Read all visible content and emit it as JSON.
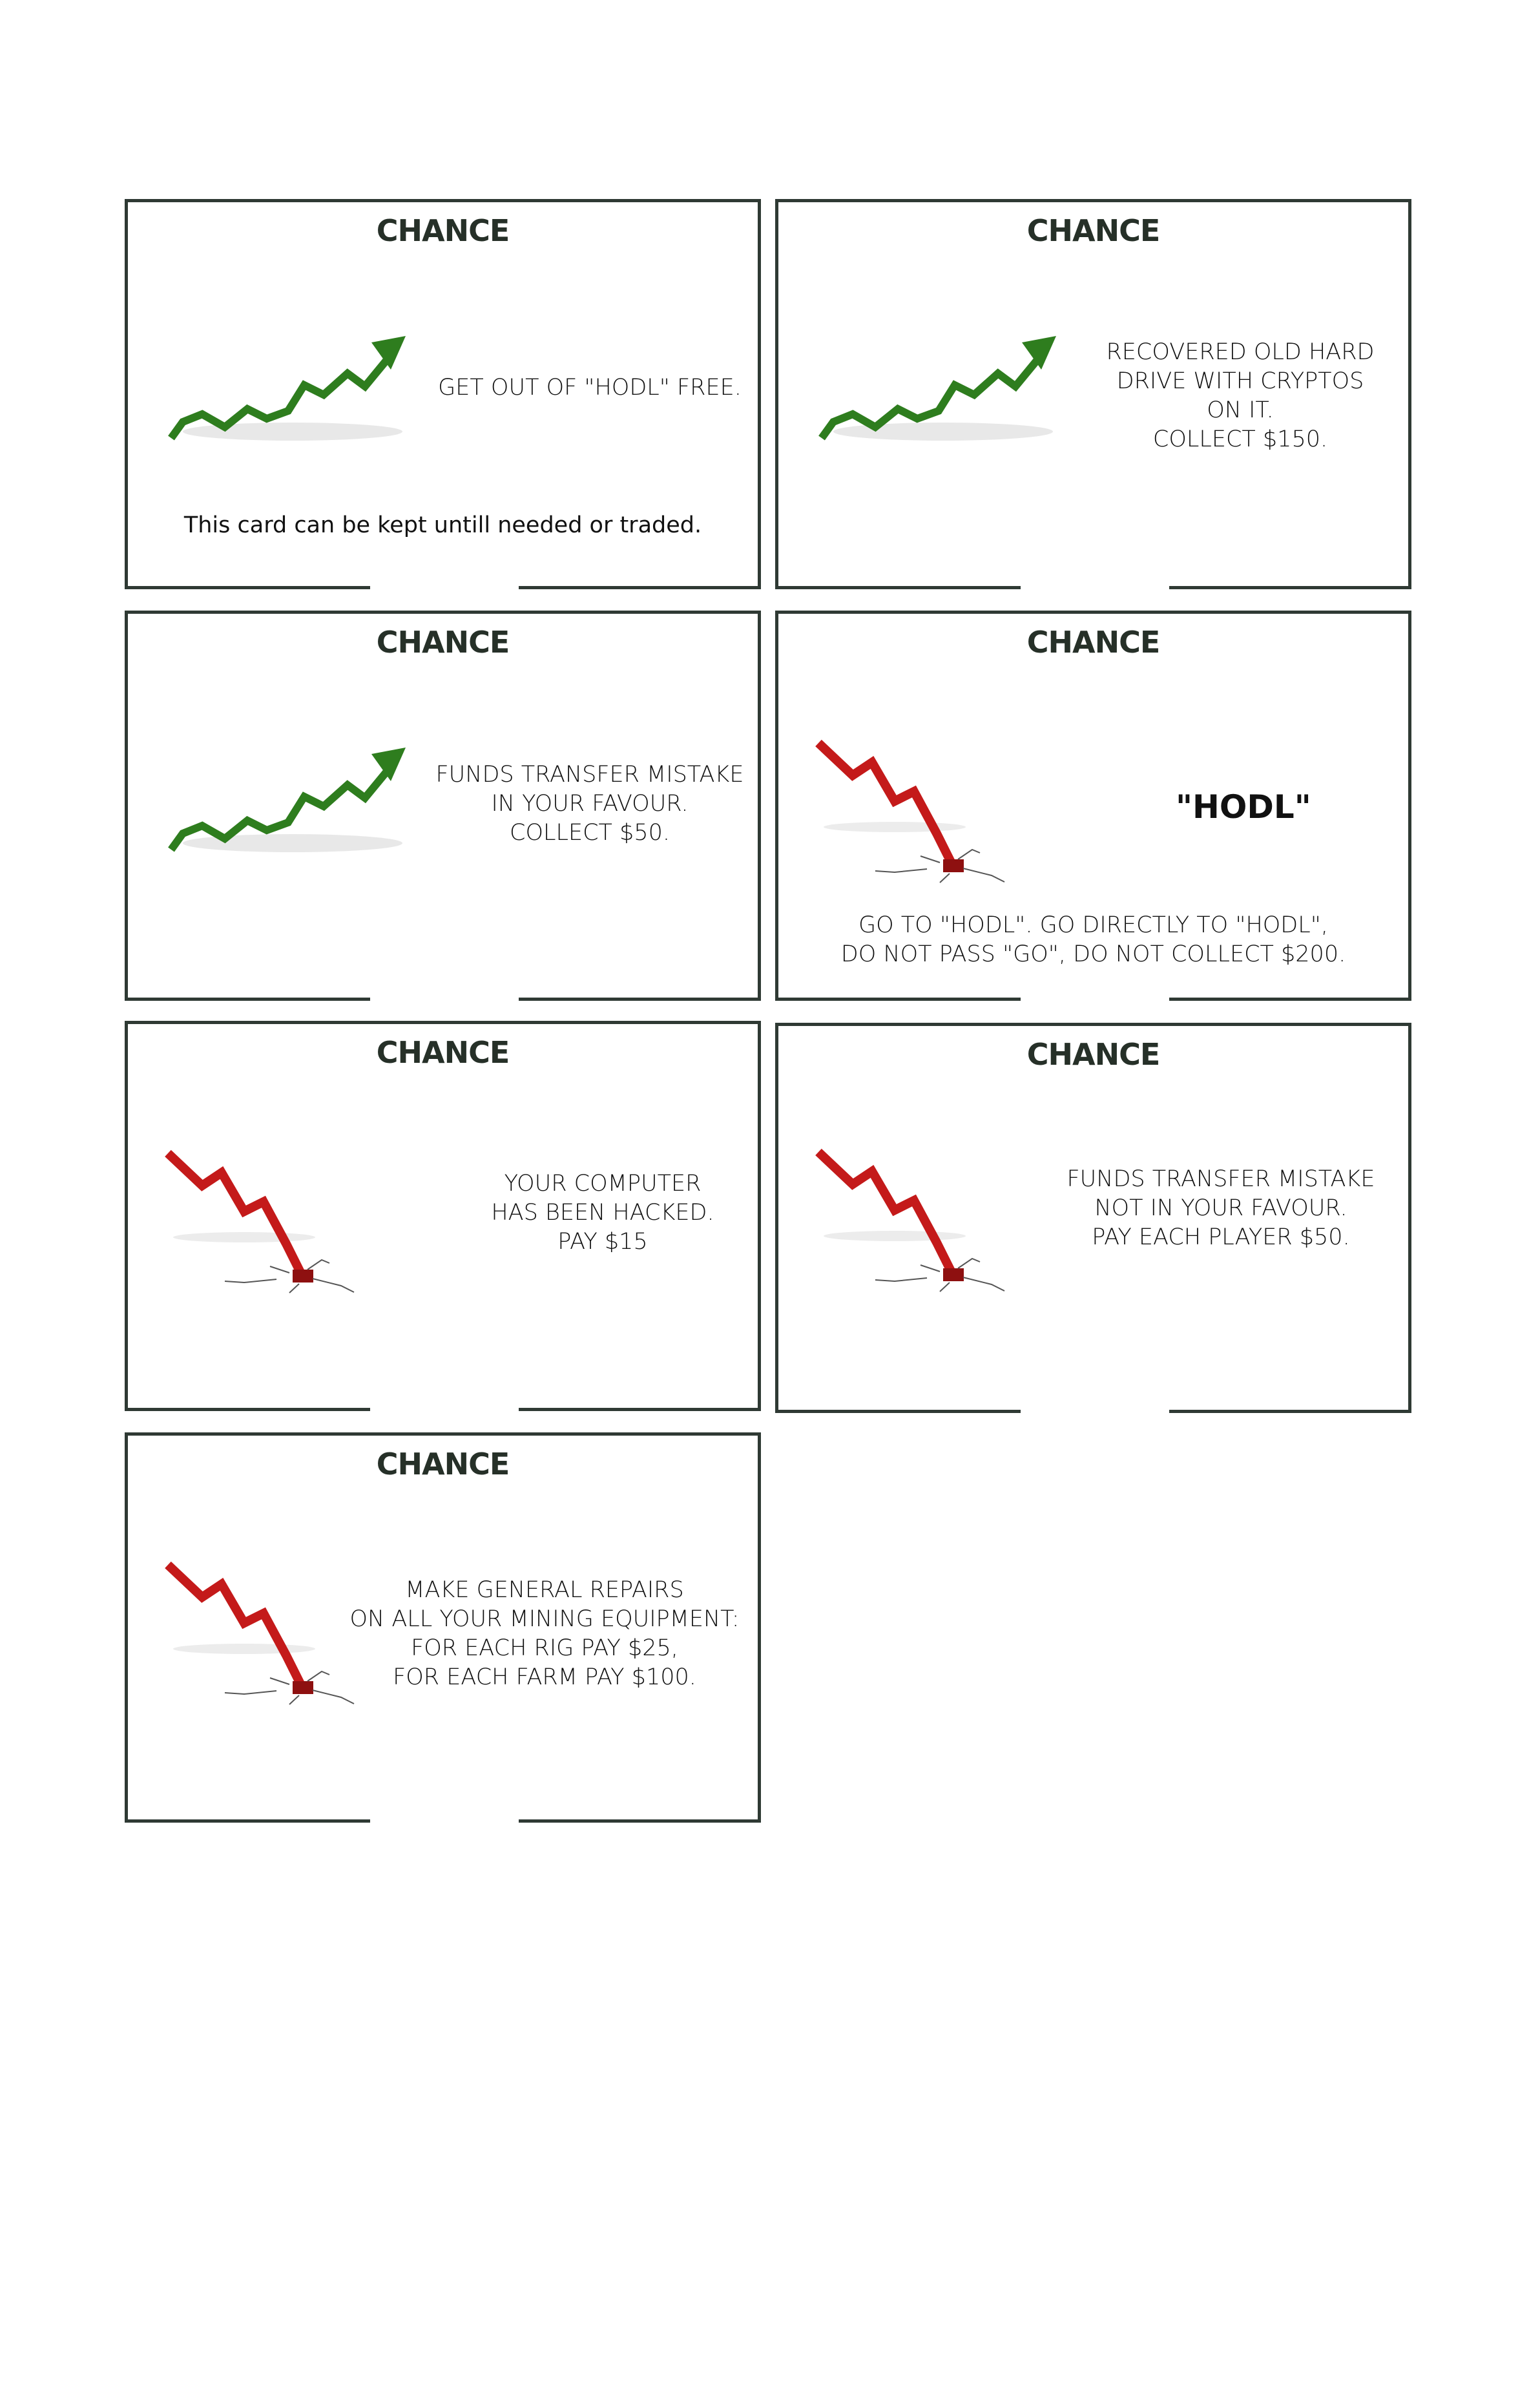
{
  "cards": [
    {
      "title": "CHANCE",
      "trend": "up-arrow-icon",
      "text": "GET OUT OF \"HODL\" FREE.",
      "subtext": "This card can be kept untill needed or traded."
    },
    {
      "title": "CHANCE",
      "trend": "up-arrow-icon",
      "text": "RECOVERED OLD HARD\nDRIVE WITH CRYPTOS\nON IT.\nCOLLECT $150."
    },
    {
      "title": "CHANCE",
      "trend": "up-arrow-icon",
      "text": "FUNDS TRANSFER MISTAKE\nIN YOUR FAVOUR.\nCOLLECT $50."
    },
    {
      "title": "CHANCE",
      "trend": "down-arrow-crash-icon",
      "big": "\"HODL\"",
      "text": "GO TO \"HODL\". GO DIRECTLY TO \"HODL\",\nDO NOT PASS \"GO\", DO NOT COLLECT $200."
    },
    {
      "title": "CHANCE",
      "trend": "down-arrow-crash-icon",
      "text": "YOUR COMPUTER\nHAS BEEN HACKED.\nPAY $15"
    },
    {
      "title": "CHANCE",
      "trend": "down-arrow-crash-icon",
      "text": "FUNDS TRANSFER MISTAKE\nNOT IN YOUR FAVOUR.\nPAY EACH PLAYER $50."
    },
    {
      "title": "CHANCE",
      "trend": "down-arrow-crash-icon",
      "text": "MAKE GENERAL REPAIRS\nON ALL YOUR MINING EQUIPMENT:\nFOR EACH RIG PAY $25,\nFOR EACH FARM PAY $100."
    }
  ],
  "colors": {
    "border": "#2f3a34",
    "up": "#2e7d1e",
    "down": "#c41a1a"
  }
}
